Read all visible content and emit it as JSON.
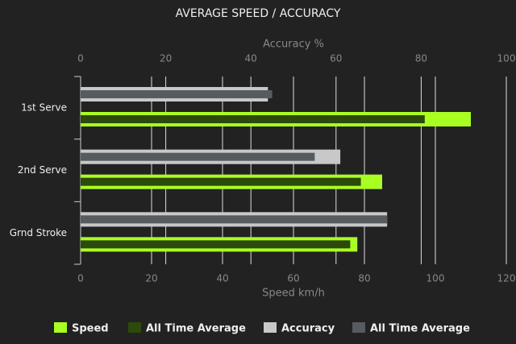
{
  "chart_data": {
    "type": "hbar",
    "title": "AVERAGE SPEED / ACCURACY",
    "categories": [
      "1st Serve",
      "2nd Serve",
      "Grnd Stroke"
    ],
    "xlabel": "Speed km/h",
    "x2label": "Accuracy %",
    "xlim": [
      0,
      120
    ],
    "xticks": [
      0,
      20,
      40,
      60,
      80,
      100,
      120
    ],
    "x2lim": [
      0,
      100
    ],
    "x2ticks": [
      0,
      20,
      40,
      60,
      80,
      100
    ],
    "grid": true,
    "legend": "bottom",
    "series": [
      {
        "name": "Speed",
        "color": "#aaff22",
        "axis": "x",
        "values": [
          110,
          85,
          78
        ]
      },
      {
        "name": "All Time Average",
        "color": "#2b4a0c",
        "axis": "x",
        "values": [
          97,
          79,
          76
        ]
      },
      {
        "name": "Accuracy",
        "color": "#c8c8c8",
        "axis": "x2",
        "values": [
          44,
          61,
          72
        ]
      },
      {
        "name": "All Time Average",
        "color": "#565b60",
        "axis": "x2",
        "values": [
          45,
          55,
          72
        ]
      }
    ]
  }
}
